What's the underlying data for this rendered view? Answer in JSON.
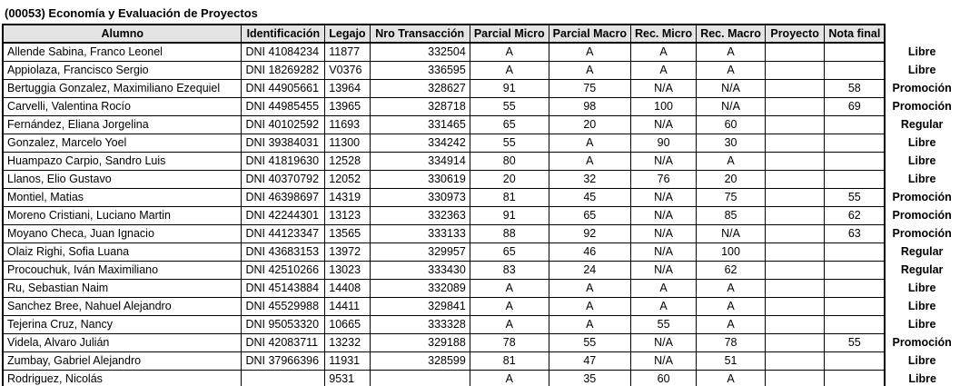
{
  "title": "(00053) Economía y Evaluación de Proyectos",
  "colors": {
    "blue": "#0070C0",
    "red": "#FF0000",
    "black": "#000000",
    "header_bg": "#E4E4E4",
    "border": "#000000"
  },
  "table": {
    "headers": [
      "Alumno",
      "Identificación",
      "Legajo",
      "Nro Transacción",
      "Parcial Micro",
      "Parcial Macro",
      "Rec. Micro",
      "Rec. Macro",
      "Proyecto",
      "Nota final"
    ],
    "rows": [
      {
        "alumno": "Allende Sabina, Franco Leonel",
        "identificacion": "DNI 41084234",
        "legajo": "11877",
        "nro_transaccion": "332504",
        "grades": [
          "A",
          "A",
          "A",
          "A",
          "",
          ""
        ],
        "grade_colors": [
          "black",
          "black",
          "black",
          "black",
          "black",
          "black"
        ],
        "status": "Libre",
        "status_color": "red",
        "row_color": "black"
      },
      {
        "alumno": "Appiolaza, Francisco Sergio",
        "identificacion": "DNI 18269282",
        "legajo": "V0376",
        "nro_transaccion": "336595",
        "grades": [
          "A",
          "A",
          "A",
          "A",
          "",
          ""
        ],
        "grade_colors": [
          "black",
          "black",
          "black",
          "black",
          "black",
          "black"
        ],
        "status": "Libre",
        "status_color": "red",
        "row_color": "black"
      },
      {
        "alumno": "Bertuggia Gonzalez, Maximiliano Ezequiel",
        "identificacion": "DNI 44905661",
        "legajo": "13964",
        "nro_transaccion": "328627",
        "grades": [
          "91",
          "75",
          "N/A",
          "N/A",
          "",
          "58"
        ],
        "grade_colors": [
          "blue",
          "blue",
          "black",
          "black",
          "black",
          "blue"
        ],
        "status": "Promoción",
        "status_color": "blue",
        "row_color": "black"
      },
      {
        "alumno": "Carvelli, Valentina Rocío",
        "identificacion": "DNI 44985455",
        "legajo": "13965",
        "nro_transaccion": "328718",
        "grades": [
          "55",
          "98",
          "100",
          "N/A",
          "",
          "69"
        ],
        "grade_colors": [
          "red",
          "blue",
          "blue",
          "black",
          "black",
          "blue"
        ],
        "status": "Promoción",
        "status_color": "blue",
        "row_color": "black"
      },
      {
        "alumno": "Fernández, Eliana Jorgelina",
        "identificacion": "DNI 40102592",
        "legajo": "11693",
        "nro_transaccion": "331465",
        "grades": [
          "65",
          "20",
          "N/A",
          "60",
          "",
          ""
        ],
        "grade_colors": [
          "black",
          "red",
          "black",
          "black",
          "black",
          "black"
        ],
        "status": "Regular",
        "status_color": "black",
        "row_color": "black"
      },
      {
        "alumno": "Gonzalez, Marcelo Yoel",
        "identificacion": "DNI 39384031",
        "legajo": "11300",
        "nro_transaccion": "334242",
        "grades": [
          "55",
          "A",
          "90",
          "30",
          "",
          ""
        ],
        "grade_colors": [
          "red",
          "black",
          "blue",
          "red",
          "black",
          "black"
        ],
        "status": "Libre",
        "status_color": "red",
        "row_color": "black"
      },
      {
        "alumno": "Huampazo Carpio, Sandro Luis",
        "identificacion": "DNI 41819630",
        "legajo": "12528",
        "nro_transaccion": "334914",
        "grades": [
          "80",
          "A",
          "N/A",
          "A",
          "",
          ""
        ],
        "grade_colors": [
          "blue",
          "black",
          "black",
          "black",
          "black",
          "black"
        ],
        "status": "Libre",
        "status_color": "red",
        "row_color": "black"
      },
      {
        "alumno": "Llanos, Elio Gustavo",
        "identificacion": "DNI 40370792",
        "legajo": "12052",
        "nro_transaccion": "330619",
        "grades": [
          "20",
          "32",
          "76",
          "20",
          "",
          ""
        ],
        "grade_colors": [
          "red",
          "red",
          "blue",
          "red",
          "black",
          "black"
        ],
        "status": "Libre",
        "status_color": "red",
        "row_color": "black"
      },
      {
        "alumno": "Montiel, Matias",
        "identificacion": "DNI 46398697",
        "legajo": "14319",
        "nro_transaccion": "330973",
        "grades": [
          "81",
          "45",
          "N/A",
          "75",
          "",
          "55"
        ],
        "grade_colors": [
          "blue",
          "red",
          "black",
          "blue",
          "black",
          "blue"
        ],
        "status": "Promoción",
        "status_color": "blue",
        "row_color": "black"
      },
      {
        "alumno": "Moreno Cristiani, Luciano Martin",
        "identificacion": "DNI 42244301",
        "legajo": "13123",
        "nro_transaccion": "332363",
        "grades": [
          "91",
          "65",
          "N/A",
          "85",
          "",
          "62"
        ],
        "grade_colors": [
          "blue",
          "black",
          "black",
          "blue",
          "black",
          "blue"
        ],
        "status": "Promoción",
        "status_color": "blue",
        "row_color": "black"
      },
      {
        "alumno": "Moyano Checa, Juan Ignacio",
        "identificacion": "DNI 44123347",
        "legajo": "13565",
        "nro_transaccion": "333133",
        "grades": [
          "88",
          "92",
          "N/A",
          "N/A",
          "",
          "63"
        ],
        "grade_colors": [
          "blue",
          "blue",
          "black",
          "black",
          "black",
          "blue"
        ],
        "status": "Promoción",
        "status_color": "blue",
        "row_color": "black"
      },
      {
        "alumno": "Olaiz Righi, Sofia Luana",
        "identificacion": "DNI 43683153",
        "legajo": "13972",
        "nro_transaccion": "329957",
        "grades": [
          "65",
          "46",
          "N/A",
          "100",
          "",
          ""
        ],
        "grade_colors": [
          "black",
          "red",
          "black",
          "blue",
          "black",
          "black"
        ],
        "status": "Regular",
        "status_color": "black",
        "row_color": "black"
      },
      {
        "alumno": "Procouchuk, Iván Maximiliano",
        "identificacion": "DNI 42510266",
        "legajo": "13023",
        "nro_transaccion": "333430",
        "grades": [
          "83",
          "24",
          "N/A",
          "62",
          "",
          ""
        ],
        "grade_colors": [
          "blue",
          "red",
          "black",
          "black",
          "black",
          "black"
        ],
        "status": "Regular",
        "status_color": "black",
        "row_color": "black"
      },
      {
        "alumno": "Ru, Sebastian Naim",
        "identificacion": "DNI 45143884",
        "legajo": "14408",
        "nro_transaccion": "332089",
        "grades": [
          "A",
          "A",
          "A",
          "A",
          "",
          ""
        ],
        "grade_colors": [
          "black",
          "black",
          "black",
          "black",
          "black",
          "black"
        ],
        "status": "Libre",
        "status_color": "red",
        "row_color": "black"
      },
      {
        "alumno": "Sanchez Bree, Nahuel Alejandro",
        "identificacion": "DNI 45529988",
        "legajo": "14411",
        "nro_transaccion": "329841",
        "grades": [
          "A",
          "A",
          "A",
          "A",
          "",
          ""
        ],
        "grade_colors": [
          "black",
          "black",
          "black",
          "black",
          "black",
          "black"
        ],
        "status": "Libre",
        "status_color": "red",
        "row_color": "black"
      },
      {
        "alumno": "Tejerina Cruz, Nancy",
        "identificacion": "DNI 95053320",
        "legajo": "10665",
        "nro_transaccion": "333328",
        "grades": [
          "A",
          "A",
          "55",
          "A",
          "",
          ""
        ],
        "grade_colors": [
          "black",
          "black",
          "red",
          "black",
          "black",
          "black"
        ],
        "status": "Libre",
        "status_color": "red",
        "row_color": "black"
      },
      {
        "alumno": "Videla, Alvaro Julián",
        "identificacion": "DNI 42083711",
        "legajo": "13232",
        "nro_transaccion": "329188",
        "grades": [
          "78",
          "55",
          "N/A",
          "78",
          "",
          "55"
        ],
        "grade_colors": [
          "blue",
          "red",
          "black",
          "blue",
          "black",
          "blue"
        ],
        "status": "Promoción",
        "status_color": "blue",
        "row_color": "black"
      },
      {
        "alumno": "Zumbay, Gabriel Alejandro",
        "identificacion": "DNI 37966396",
        "legajo": "11931",
        "nro_transaccion": "328599",
        "grades": [
          "81",
          "47",
          "N/A",
          "51",
          "",
          ""
        ],
        "grade_colors": [
          "blue",
          "red",
          "black",
          "red",
          "black",
          "black"
        ],
        "status": "Libre",
        "status_color": "red",
        "row_color": "black"
      },
      {
        "alumno": "Rodriguez, Nicolás",
        "identificacion": "",
        "legajo": "9531",
        "nro_transaccion": "",
        "grades": [
          "A",
          "35",
          "60",
          "A",
          "",
          ""
        ],
        "grade_colors": [
          "black",
          "red",
          "black",
          "black",
          "black",
          "black"
        ],
        "status": "Libre",
        "status_color": "red",
        "row_color": "red"
      }
    ]
  }
}
